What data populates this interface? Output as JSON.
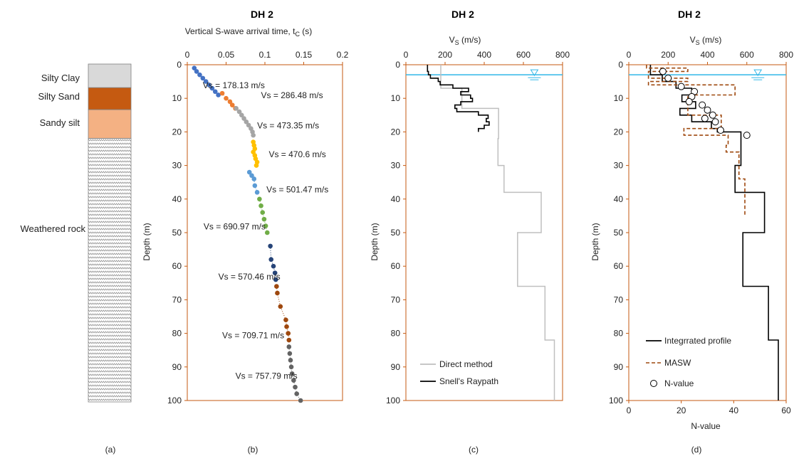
{
  "figure": {
    "panel_labels": [
      "(a)",
      "(b)",
      "(c)",
      "(d)"
    ]
  },
  "chart_data": [
    {
      "panel": "a",
      "type": "strata-column",
      "layers": [
        {
          "name": "Silty Clay",
          "top": 0,
          "bottom": 7,
          "color": "#d9d9d9",
          "pattern": "none"
        },
        {
          "name": "Silty Sand",
          "top": 7,
          "bottom": 13.5,
          "color": "#c55a11",
          "pattern": "none"
        },
        {
          "name": "Sandy silt",
          "top": 13.5,
          "bottom": 22,
          "color": "#f4b183",
          "pattern": "none"
        },
        {
          "name": "Weathered rock",
          "top": 22,
          "bottom": 100,
          "color": "#ffffff",
          "pattern": "zigzag"
        }
      ],
      "ylim": [
        0,
        100
      ]
    },
    {
      "panel": "b",
      "type": "scatter",
      "title": "DH 2",
      "xlabel": "Vertical S-wave arrival time, t",
      "xlabel_sub": "C",
      "xlabel_unit": " (s)",
      "ylabel": "Depth  (m)",
      "xlim": [
        0,
        0.2
      ],
      "ylim": [
        0,
        100
      ],
      "xticks": [
        "0",
        "0.05",
        "0.1",
        "0.15",
        "0.2"
      ],
      "yticks": [
        "0",
        "10",
        "20",
        "30",
        "40",
        "50",
        "60",
        "70",
        "80",
        "90",
        "100"
      ],
      "series": [
        {
          "color": "#4472c4",
          "points": [
            [
              0.009,
              1
            ],
            [
              0.012,
              2
            ],
            [
              0.016,
              3
            ],
            [
              0.02,
              4
            ],
            [
              0.024,
              5
            ],
            [
              0.028,
              6
            ],
            [
              0.032,
              7
            ],
            [
              0.036,
              8
            ],
            [
              0.04,
              9
            ]
          ]
        },
        {
          "color": "#ed7d31",
          "points": [
            [
              0.045,
              8.5
            ],
            [
              0.05,
              10
            ],
            [
              0.055,
              11
            ],
            [
              0.058,
              12
            ],
            [
              0.062,
              13
            ]
          ]
        },
        {
          "color": "#a5a5a5",
          "points": [
            [
              0.063,
              13
            ],
            [
              0.067,
              14
            ],
            [
              0.07,
              15
            ],
            [
              0.073,
              16
            ],
            [
              0.076,
              17
            ],
            [
              0.079,
              18
            ],
            [
              0.082,
              19
            ],
            [
              0.084,
              20
            ],
            [
              0.085,
              21
            ]
          ]
        },
        {
          "color": "#ffc000",
          "points": [
            [
              0.085,
              23
            ],
            [
              0.086,
              24
            ],
            [
              0.087,
              25
            ],
            [
              0.085,
              26
            ],
            [
              0.087,
              27
            ],
            [
              0.088,
              28
            ],
            [
              0.09,
              29
            ],
            [
              0.089,
              30
            ]
          ]
        },
        {
          "color": "#5b9bd5",
          "points": [
            [
              0.08,
              32
            ],
            [
              0.083,
              33
            ],
            [
              0.086,
              34
            ],
            [
              0.087,
              36
            ],
            [
              0.09,
              38
            ]
          ]
        },
        {
          "color": "#70ad47",
          "points": [
            [
              0.093,
              40
            ],
            [
              0.095,
              42
            ],
            [
              0.097,
              44
            ],
            [
              0.099,
              46
            ],
            [
              0.101,
              48
            ],
            [
              0.103,
              50
            ]
          ]
        },
        {
          "color": "#264478",
          "points": [
            [
              0.107,
              54
            ],
            [
              0.108,
              58
            ],
            [
              0.111,
              60
            ],
            [
              0.113,
              62
            ],
            [
              0.114,
              64
            ]
          ]
        },
        {
          "color": "#9e480e",
          "points": [
            [
              0.115,
              66
            ],
            [
              0.116,
              68
            ],
            [
              0.12,
              72
            ],
            [
              0.127,
              76
            ],
            [
              0.128,
              78
            ],
            [
              0.13,
              80
            ],
            [
              0.131,
              82
            ]
          ]
        },
        {
          "color": "#636363",
          "points": [
            [
              0.131,
              84
            ],
            [
              0.132,
              86
            ],
            [
              0.133,
              88
            ],
            [
              0.134,
              90
            ],
            [
              0.135,
              92
            ],
            [
              0.137,
              94
            ],
            [
              0.139,
              96
            ],
            [
              0.141,
              98
            ],
            [
              0.146,
              100
            ]
          ]
        }
      ],
      "annotations": [
        "Vs = 178.13 m/s",
        "Vs = 286.48 m/s",
        "Vs = 473.35 m/s",
        "Vs = 470.6 m/s",
        "Vs = 501.47 m/s",
        "Vs = 690.97 m/s",
        "Vs = 570.46 m/s",
        "Vs = 709.71 m/s",
        "Vs = 757.79 m/s"
      ],
      "annotation_anchors": [
        [
          0.02,
          7
        ],
        [
          0.095,
          10
        ],
        [
          0.09,
          19
        ],
        [
          0.105,
          27.5
        ],
        [
          0.102,
          38
        ],
        [
          0.021,
          49
        ],
        [
          0.04,
          64
        ],
        [
          0.045,
          81.5
        ],
        [
          0.062,
          93.5
        ]
      ]
    },
    {
      "panel": "c",
      "type": "line",
      "title": "DH 2",
      "xlabel": "V",
      "xlabel_sub": "S",
      "xlabel_unit": " (m/s)",
      "ylabel": "Depth  (m)",
      "xlim": [
        0,
        800
      ],
      "ylim": [
        0,
        100
      ],
      "xticks": [
        "0",
        "200",
        "400",
        "600",
        "800"
      ],
      "yticks": [
        "0",
        "10",
        "20",
        "30",
        "40",
        "50",
        "60",
        "70",
        "80",
        "90",
        "100"
      ],
      "water_table_depth": 3,
      "series": [
        {
          "name": "Direct method",
          "color": "#bfbfbf",
          "dash": "none",
          "points": [
            [
              178,
              0
            ],
            [
              178,
              7
            ],
            [
              286,
              7
            ],
            [
              286,
              13
            ],
            [
              473,
              13
            ],
            [
              473,
              22
            ],
            [
              470,
              22
            ],
            [
              470,
              30
            ],
            [
              501,
              30
            ],
            [
              501,
              38
            ],
            [
              691,
              38
            ],
            [
              691,
              50
            ],
            [
              570,
              50
            ],
            [
              570,
              66
            ],
            [
              710,
              66
            ],
            [
              710,
              82
            ],
            [
              758,
              82
            ],
            [
              758,
              100
            ]
          ]
        },
        {
          "name": "Snell's Raypath",
          "color": "#000000",
          "dash": "none",
          "points": [
            [
              110,
              0
            ],
            [
              110,
              2
            ],
            [
              115,
              2
            ],
            [
              115,
              3
            ],
            [
              125,
              3
            ],
            [
              125,
              4
            ],
            [
              165,
              4
            ],
            [
              165,
              5
            ],
            [
              175,
              5
            ],
            [
              175,
              6
            ],
            [
              240,
              6
            ],
            [
              240,
              7
            ],
            [
              320,
              7
            ],
            [
              320,
              8
            ],
            [
              280,
              8
            ],
            [
              280,
              9
            ],
            [
              330,
              9
            ],
            [
              330,
              10
            ],
            [
              340,
              10
            ],
            [
              340,
              11
            ],
            [
              280,
              11
            ],
            [
              280,
              12
            ],
            [
              250,
              12
            ],
            [
              250,
              13
            ],
            [
              260,
              13
            ],
            [
              260,
              14
            ],
            [
              370,
              14
            ],
            [
              370,
              15
            ],
            [
              420,
              15
            ],
            [
              420,
              16
            ],
            [
              410,
              16
            ],
            [
              410,
              17
            ],
            [
              425,
              17
            ],
            [
              425,
              18
            ],
            [
              400,
              18
            ],
            [
              400,
              19
            ],
            [
              370,
              19
            ],
            [
              370,
              20
            ]
          ]
        }
      ],
      "legend_position": "bottom-right"
    },
    {
      "panel": "d",
      "type": "line",
      "title": "DH 2",
      "xlabel": "V",
      "xlabel_sub": "S",
      "xlabel_unit": " (m/s)",
      "x2label": "N-value",
      "ylabel": "Depth  (m)",
      "xlim": [
        0,
        800
      ],
      "x2lim": [
        0,
        60
      ],
      "ylim": [
        0,
        100
      ],
      "xticks": [
        "0",
        "200",
        "400",
        "600",
        "800"
      ],
      "x2ticks": [
        "0",
        "20",
        "40",
        "60"
      ],
      "yticks": [
        "0",
        "10",
        "20",
        "30",
        "40",
        "50",
        "60",
        "70",
        "80",
        "90",
        "100"
      ],
      "water_table_depth": 3,
      "series": [
        {
          "name": "Integrrated profile",
          "color": "#000000",
          "dash": "none",
          "points": [
            [
              110,
              0
            ],
            [
              110,
              3
            ],
            [
              170,
              3
            ],
            [
              170,
              5
            ],
            [
              240,
              5
            ],
            [
              240,
              7
            ],
            [
              320,
              7
            ],
            [
              320,
              9
            ],
            [
              270,
              9
            ],
            [
              270,
              11
            ],
            [
              340,
              11
            ],
            [
              340,
              13
            ],
            [
              260,
              13
            ],
            [
              260,
              15
            ],
            [
              320,
              15
            ],
            [
              320,
              17
            ],
            [
              420,
              17
            ],
            [
              420,
              19
            ],
            [
              450,
              19
            ],
            [
              450,
              20
            ],
            [
              570,
              20
            ],
            [
              570,
              30
            ],
            [
              540,
              30
            ],
            [
              540,
              38
            ],
            [
              690,
              38
            ],
            [
              690,
              50
            ],
            [
              580,
              50
            ],
            [
              580,
              66
            ],
            [
              710,
              66
            ],
            [
              710,
              82
            ],
            [
              760,
              82
            ],
            [
              760,
              100
            ]
          ]
        },
        {
          "name": "MASW",
          "color": "#9e480e",
          "dash": "5,3",
          "points": [
            [
              90,
              0
            ],
            [
              90,
              1
            ],
            [
              300,
              1
            ],
            [
              300,
              2
            ],
            [
              100,
              2
            ],
            [
              100,
              4
            ],
            [
              300,
              4
            ],
            [
              300,
              5
            ],
            [
              100,
              5
            ],
            [
              100,
              6
            ],
            [
              540,
              6
            ],
            [
              540,
              9
            ],
            [
              300,
              9
            ],
            [
              300,
              15
            ],
            [
              470,
              15
            ],
            [
              470,
              19
            ],
            [
              280,
              19
            ],
            [
              280,
              21
            ],
            [
              505,
              21
            ],
            [
              505,
              24
            ],
            [
              495,
              24
            ],
            [
              495,
              26
            ],
            [
              560,
              26
            ],
            [
              560,
              34
            ],
            [
              590,
              34
            ],
            [
              590,
              45
            ]
          ]
        }
      ],
      "points_series": {
        "name": "N-value",
        "color": "#000000",
        "points": [
          [
            13,
            2
          ],
          [
            15,
            4
          ],
          [
            20,
            6.5
          ],
          [
            25,
            8
          ],
          [
            24,
            9.5
          ],
          [
            23,
            11
          ],
          [
            28,
            12
          ],
          [
            30,
            13.5
          ],
          [
            32,
            15
          ],
          [
            29,
            16
          ],
          [
            33,
            17
          ],
          [
            35,
            19.5
          ],
          [
            45,
            21
          ]
        ]
      },
      "legend_position": "bottom-left"
    }
  ]
}
